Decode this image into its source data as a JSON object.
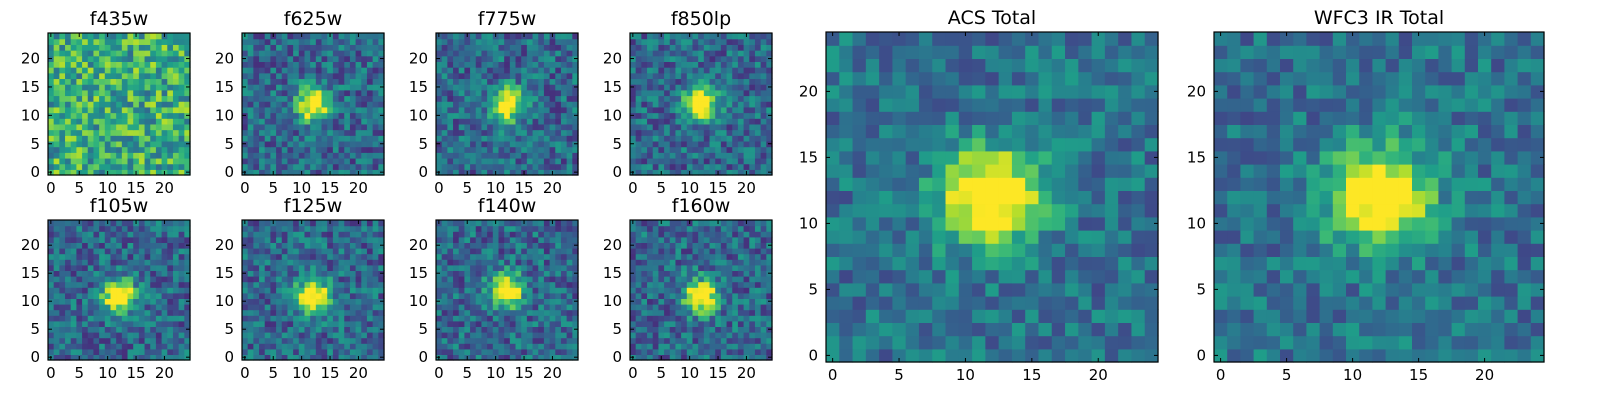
{
  "chart_data": [
    {
      "type": "heatmap",
      "title": "f435w",
      "xlim": [
        0,
        24
      ],
      "ylim": [
        0,
        24
      ],
      "xticks": [
        0,
        5,
        10,
        15,
        20
      ],
      "yticks": [
        0,
        5,
        10,
        15,
        20
      ],
      "colormap": "viridis",
      "source_center": null,
      "peak_pixels": [
        12,
        12
      ]
    },
    {
      "type": "heatmap",
      "title": "f625w",
      "xlim": [
        0,
        24
      ],
      "ylim": [
        0,
        24
      ],
      "xticks": [
        0,
        5,
        10,
        15,
        20
      ],
      "yticks": [
        0,
        5,
        10,
        15,
        20
      ],
      "colormap": "viridis",
      "source_center": [
        12,
        12
      ]
    },
    {
      "type": "heatmap",
      "title": "f775w",
      "xlim": [
        0,
        24
      ],
      "ylim": [
        0,
        24
      ],
      "xticks": [
        0,
        5,
        10,
        15,
        20
      ],
      "yticks": [
        0,
        5,
        10,
        15,
        20
      ],
      "colormap": "viridis",
      "source_center": [
        12,
        12
      ]
    },
    {
      "type": "heatmap",
      "title": "f850lp",
      "xlim": [
        0,
        24
      ],
      "ylim": [
        0,
        24
      ],
      "xticks": [
        0,
        5,
        10,
        15,
        20
      ],
      "yticks": [
        0,
        5,
        10,
        15,
        20
      ],
      "colormap": "viridis",
      "source_center": [
        12,
        12
      ]
    },
    {
      "type": "heatmap",
      "title": "f105w",
      "xlim": [
        0,
        24
      ],
      "ylim": [
        0,
        24
      ],
      "xticks": [
        0,
        5,
        10,
        15,
        20
      ],
      "yticks": [
        0,
        5,
        10,
        15,
        20
      ],
      "colormap": "viridis",
      "source_center": [
        12,
        11
      ]
    },
    {
      "type": "heatmap",
      "title": "f125w",
      "xlim": [
        0,
        24
      ],
      "ylim": [
        0,
        24
      ],
      "xticks": [
        0,
        5,
        10,
        15,
        20
      ],
      "yticks": [
        0,
        5,
        10,
        15,
        20
      ],
      "colormap": "viridis",
      "source_center": [
        12,
        11
      ]
    },
    {
      "type": "heatmap",
      "title": "f140w",
      "xlim": [
        0,
        24
      ],
      "ylim": [
        0,
        24
      ],
      "xticks": [
        0,
        5,
        10,
        15,
        20
      ],
      "yticks": [
        0,
        5,
        10,
        15,
        20
      ],
      "colormap": "viridis",
      "source_center": [
        12,
        12
      ]
    },
    {
      "type": "heatmap",
      "title": "f160w",
      "xlim": [
        0,
        24
      ],
      "ylim": [
        0,
        24
      ],
      "xticks": [
        0,
        5,
        10,
        15,
        20
      ],
      "yticks": [
        0,
        5,
        10,
        15,
        20
      ],
      "colormap": "viridis",
      "source_center": [
        12,
        11
      ]
    },
    {
      "type": "heatmap",
      "title": "ACS Total",
      "xlim": [
        0,
        24
      ],
      "ylim": [
        0,
        24
      ],
      "xticks": [
        0,
        5,
        10,
        15,
        20
      ],
      "yticks": [
        0,
        5,
        10,
        15,
        20
      ],
      "colormap": "viridis",
      "source_center": [
        12,
        12
      ]
    },
    {
      "type": "heatmap",
      "title": "WFC3 IR Total",
      "xlim": [
        0,
        24
      ],
      "ylim": [
        0,
        24
      ],
      "xticks": [
        0,
        5,
        10,
        15,
        20
      ],
      "yticks": [
        0,
        5,
        10,
        15,
        20
      ],
      "colormap": "viridis",
      "source_center": [
        12,
        12
      ]
    }
  ]
}
